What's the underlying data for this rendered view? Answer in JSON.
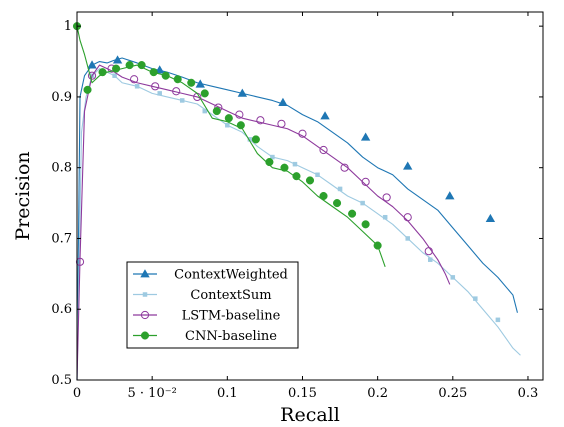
{
  "chart_data": {
    "type": "line",
    "xlabel": "Recall",
    "ylabel": "Precision",
    "xlim": [
      0,
      0.31
    ],
    "ylim": [
      0.5,
      1.02
    ],
    "x_ticks": [
      {
        "value": 0,
        "label": "0"
      },
      {
        "value": 0.05,
        "label": "5 · 10⁻²"
      },
      {
        "value": 0.1,
        "label": "0.1"
      },
      {
        "value": 0.15,
        "label": "0.15"
      },
      {
        "value": 0.2,
        "label": "0.2"
      },
      {
        "value": 0.25,
        "label": "0.25"
      },
      {
        "value": 0.3,
        "label": "0.3"
      }
    ],
    "y_ticks": [
      {
        "value": 0.5,
        "label": "0.5"
      },
      {
        "value": 0.6,
        "label": "0.6"
      },
      {
        "value": 0.7,
        "label": "0.7"
      },
      {
        "value": 0.8,
        "label": "0.8"
      },
      {
        "value": 0.9,
        "label": "0.9"
      },
      {
        "value": 1,
        "label": "1"
      }
    ],
    "grid": false,
    "legend_position": "bottom-left",
    "series": [
      {
        "name": "ContextWeighted",
        "color": "#1f77b4",
        "marker": "triangle",
        "x": [
          0,
          0.002,
          0.005,
          0.01,
          0.015,
          0.02,
          0.025,
          0.03,
          0.04,
          0.05,
          0.06,
          0.07,
          0.08,
          0.09,
          0.1,
          0.11,
          0.12,
          0.13,
          0.14,
          0.15,
          0.16,
          0.17,
          0.18,
          0.19,
          0.2,
          0.21,
          0.22,
          0.23,
          0.24,
          0.25,
          0.26,
          0.27,
          0.28,
          0.29,
          0.293
        ],
        "y": [
          0.5,
          0.9,
          0.93,
          0.945,
          0.95,
          0.948,
          0.952,
          0.955,
          0.948,
          0.94,
          0.935,
          0.928,
          0.92,
          0.915,
          0.91,
          0.905,
          0.9,
          0.895,
          0.888,
          0.875,
          0.865,
          0.85,
          0.835,
          0.815,
          0.8,
          0.79,
          0.77,
          0.755,
          0.74,
          0.715,
          0.69,
          0.665,
          0.645,
          0.62,
          0.595
        ],
        "markers_x": [
          0.01,
          0.027,
          0.055,
          0.082,
          0.11,
          0.137,
          0.165,
          0.192,
          0.22,
          0.248,
          0.275
        ],
        "markers_y": [
          0.945,
          0.952,
          0.938,
          0.918,
          0.905,
          0.892,
          0.873,
          0.843,
          0.802,
          0.76,
          0.728
        ]
      },
      {
        "name": "ContextSum",
        "color": "#9ecae1",
        "marker": "square",
        "x": [
          0,
          0.003,
          0.006,
          0.01,
          0.015,
          0.02,
          0.025,
          0.03,
          0.04,
          0.05,
          0.06,
          0.07,
          0.08,
          0.09,
          0.1,
          0.11,
          0.12,
          0.13,
          0.14,
          0.15,
          0.16,
          0.17,
          0.18,
          0.19,
          0.2,
          0.21,
          0.22,
          0.23,
          0.24,
          0.25,
          0.26,
          0.27,
          0.28,
          0.29,
          0.295
        ],
        "y": [
          0.5,
          0.85,
          0.9,
          0.93,
          0.94,
          0.935,
          0.93,
          0.92,
          0.915,
          0.905,
          0.9,
          0.895,
          0.89,
          0.875,
          0.86,
          0.85,
          0.83,
          0.815,
          0.81,
          0.8,
          0.79,
          0.775,
          0.76,
          0.75,
          0.735,
          0.72,
          0.7,
          0.68,
          0.665,
          0.645,
          0.625,
          0.6,
          0.575,
          0.545,
          0.535
        ],
        "markers_x": [
          0.01,
          0.025,
          0.04,
          0.055,
          0.07,
          0.085,
          0.1,
          0.115,
          0.13,
          0.145,
          0.16,
          0.175,
          0.19,
          0.205,
          0.22,
          0.235,
          0.25,
          0.265,
          0.28
        ],
        "markers_y": [
          0.93,
          0.93,
          0.915,
          0.905,
          0.895,
          0.88,
          0.86,
          0.84,
          0.815,
          0.805,
          0.79,
          0.77,
          0.75,
          0.73,
          0.7,
          0.67,
          0.645,
          0.615,
          0.585
        ]
      },
      {
        "name": "LSTM-baseline",
        "color": "#8e3a9d",
        "marker": "circle-open",
        "x": [
          0,
          0.002,
          0.005,
          0.01,
          0.015,
          0.02,
          0.025,
          0.03,
          0.04,
          0.05,
          0.06,
          0.07,
          0.08,
          0.09,
          0.1,
          0.11,
          0.12,
          0.13,
          0.14,
          0.15,
          0.16,
          0.17,
          0.18,
          0.19,
          0.2,
          0.21,
          0.22,
          0.23,
          0.24,
          0.245,
          0.248
        ],
        "y": [
          0.5,
          0.67,
          0.88,
          0.93,
          0.945,
          0.94,
          0.935,
          0.928,
          0.92,
          0.915,
          0.91,
          0.905,
          0.9,
          0.89,
          0.88,
          0.87,
          0.865,
          0.86,
          0.855,
          0.845,
          0.83,
          0.815,
          0.8,
          0.78,
          0.76,
          0.745,
          0.725,
          0.7,
          0.67,
          0.65,
          0.635
        ],
        "markers_x": [
          0.002,
          0.01,
          0.023,
          0.038,
          0.052,
          0.066,
          0.08,
          0.094,
          0.108,
          0.122,
          0.136,
          0.15,
          0.164,
          0.178,
          0.192,
          0.206,
          0.22,
          0.234
        ],
        "markers_y": [
          0.667,
          0.93,
          0.94,
          0.925,
          0.915,
          0.908,
          0.9,
          0.885,
          0.875,
          0.867,
          0.862,
          0.848,
          0.825,
          0.8,
          0.78,
          0.758,
          0.73,
          0.682
        ]
      },
      {
        "name": "CNN-baseline",
        "color": "#2ca02c",
        "marker": "circle-filled",
        "x": [
          0,
          0.002,
          0.005,
          0.01,
          0.015,
          0.02,
          0.03,
          0.04,
          0.05,
          0.06,
          0.07,
          0.08,
          0.09,
          0.1,
          0.11,
          0.12,
          0.13,
          0.14,
          0.15,
          0.16,
          0.17,
          0.18,
          0.19,
          0.2,
          0.205
        ],
        "y": [
          1.0,
          0.98,
          0.96,
          0.92,
          0.93,
          0.935,
          0.94,
          0.945,
          0.935,
          0.93,
          0.92,
          0.905,
          0.87,
          0.865,
          0.855,
          0.82,
          0.8,
          0.795,
          0.78,
          0.76,
          0.745,
          0.73,
          0.71,
          0.69,
          0.66
        ],
        "markers_x": [
          0,
          0.007,
          0.017,
          0.026,
          0.035,
          0.043,
          0.051,
          0.059,
          0.067,
          0.076,
          0.085,
          0.093,
          0.101,
          0.109,
          0.119,
          0.128,
          0.138,
          0.146,
          0.155,
          0.164,
          0.173,
          0.183,
          0.192,
          0.2
        ],
        "markers_y": [
          1.0,
          0.91,
          0.935,
          0.94,
          0.945,
          0.945,
          0.935,
          0.93,
          0.925,
          0.92,
          0.905,
          0.88,
          0.87,
          0.86,
          0.84,
          0.808,
          0.8,
          0.788,
          0.782,
          0.76,
          0.75,
          0.735,
          0.72,
          0.69
        ]
      }
    ]
  }
}
